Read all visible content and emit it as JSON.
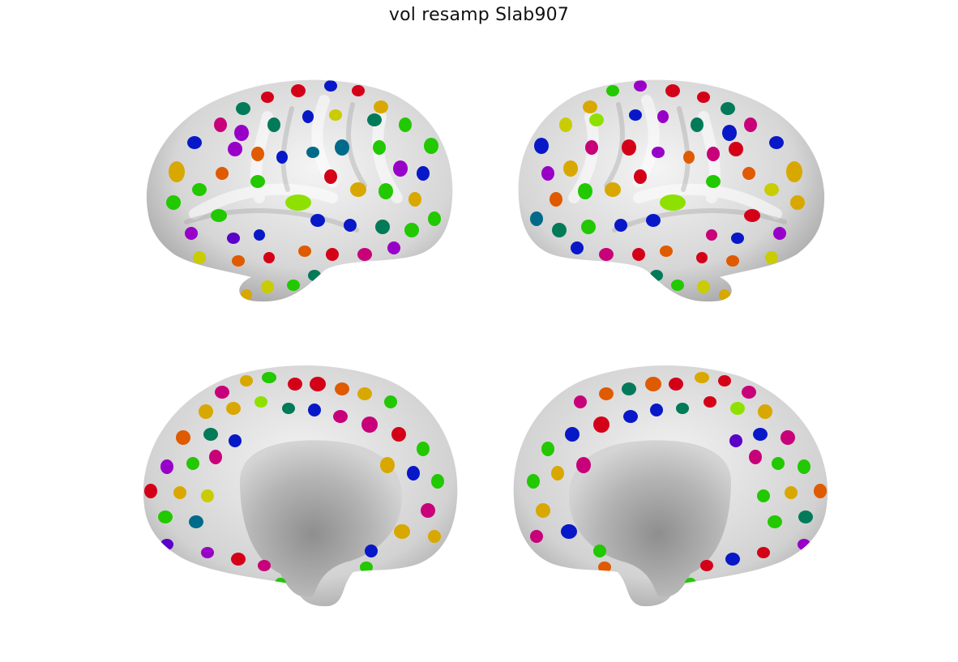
{
  "figure": {
    "title": "vol resamp Slab907"
  },
  "views": [
    {
      "id": "left-lateral",
      "hemisphere": "left",
      "surface": "lateral"
    },
    {
      "id": "right-lateral",
      "hemisphere": "right",
      "surface": "lateral"
    },
    {
      "id": "left-medial",
      "hemisphere": "left",
      "surface": "medial"
    },
    {
      "id": "right-medial",
      "hemisphere": "right",
      "surface": "medial"
    }
  ],
  "colors": {
    "surface_light": "#f2f2f2",
    "surface_mid": "#c8c8c8",
    "surface_dark": "#8e8e8e",
    "medial_wall": "#b4b4b4",
    "patch_palette": [
      "#d40018",
      "#e05a00",
      "#d8a800",
      "#c8cc00",
      "#8ee000",
      "#22c800",
      "#007a58",
      "#006a8a",
      "#0818c8",
      "#5a00c8",
      "#9800c8",
      "#c8007a"
    ]
  }
}
